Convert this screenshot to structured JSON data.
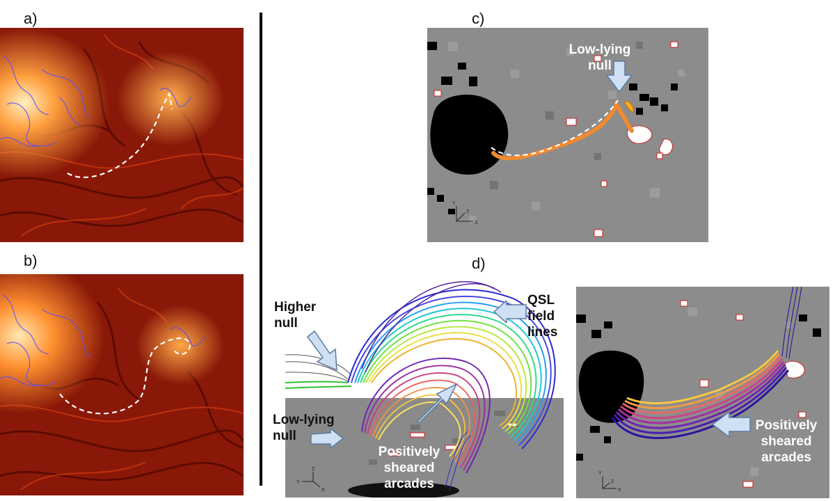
{
  "panels": {
    "a": "a)",
    "b": "b)",
    "c": "c)",
    "d": "d)"
  },
  "annotations": {
    "c_low_lying_null": [
      "Low-lying",
      "null"
    ],
    "d_higher_null": [
      "Higher",
      "null"
    ],
    "d_low_lying_null": [
      "Low-lying",
      "null"
    ],
    "d_qsl": [
      "QSL",
      "field",
      "lines"
    ],
    "d_positively_sheared_center": [
      "Positively",
      "sheared",
      "arcades"
    ],
    "d_positively_sheared_right": [
      "Positively",
      "sheared",
      "arcades"
    ]
  },
  "axis_triads": {
    "c": {
      "y": "Y",
      "z": "Z",
      "x": "X"
    },
    "d_left": {
      "z": "Z",
      "y": "Y",
      "x": "X"
    },
    "d_right": {
      "y": "Y",
      "z": "Z",
      "x": "X"
    }
  },
  "colors": {
    "euv_dark": "#3a0200",
    "euv_mid": "#b8260a",
    "euv_bright": "#ffc070",
    "magnetogram_gray": "#8c8c8c",
    "contour_blue": "#5a4cff",
    "contour_red": "#d21e1e",
    "arrow_fill": "#cfe0f4",
    "arrow_stroke": "#5b7aa0"
  }
}
